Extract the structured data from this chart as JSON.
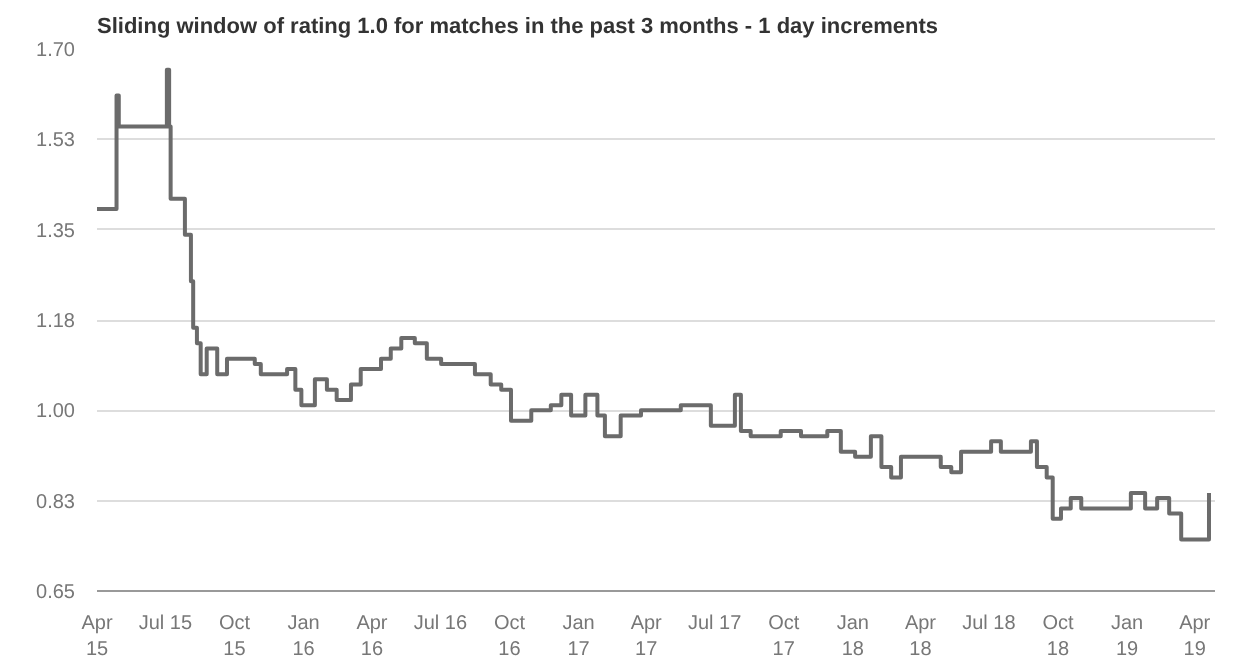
{
  "chart_data": {
    "type": "step",
    "title": "Sliding window of rating 1.0 for matches in the past 3 months - 1 day increments",
    "x": [
      "2015-04-01",
      "2015-04-27",
      "2015-04-30",
      "2015-05-06",
      "2015-06-25",
      "2015-07-03",
      "2015-07-06",
      "2015-07-08",
      "2015-07-22",
      "2015-07-27",
      "2015-08-01",
      "2015-08-04",
      "2015-08-07",
      "2015-08-12",
      "2015-08-17",
      "2015-08-25",
      "2015-09-08",
      "2015-09-21",
      "2015-10-28",
      "2015-11-05",
      "2015-12-10",
      "2015-12-21",
      "2015-12-29",
      "2016-01-16",
      "2016-02-01",
      "2016-02-14",
      "2016-03-04",
      "2016-03-17",
      "2016-04-13",
      "2016-04-26",
      "2016-05-10",
      "2016-05-28",
      "2016-06-13",
      "2016-07-02",
      "2016-08-03",
      "2016-08-16",
      "2016-09-06",
      "2016-09-20",
      "2016-10-03",
      "2016-10-30",
      "2016-11-25",
      "2016-12-09",
      "2016-12-22",
      "2017-01-10",
      "2017-01-26",
      "2017-02-05",
      "2017-02-26",
      "2017-03-25",
      "2017-04-29",
      "2017-05-17",
      "2017-06-13",
      "2017-06-26",
      "2017-07-28",
      "2017-08-05",
      "2017-08-18",
      "2017-09-27",
      "2017-10-24",
      "2017-11-28",
      "2017-12-16",
      "2018-01-04",
      "2018-01-25",
      "2018-02-08",
      "2018-02-21",
      "2018-03-06",
      "2018-04-02",
      "2018-04-28",
      "2018-05-12",
      "2018-05-25",
      "2018-06-21",
      "2018-07-04",
      "2018-07-17",
      "2018-08-18",
      "2018-08-26",
      "2018-09-03",
      "2018-09-16",
      "2018-09-24",
      "2018-10-05",
      "2018-10-18",
      "2018-11-01",
      "2018-11-22",
      "2018-12-24",
      "2019-01-06",
      "2019-01-25",
      "2019-02-10",
      "2019-02-26",
      "2019-03-14",
      "2019-04-17",
      "2019-04-20"
    ],
    "series": [
      {
        "color": "#6b6b6b",
        "values": [
          1.39,
          1.61,
          1.55,
          1.55,
          1.55,
          1.66,
          1.55,
          1.41,
          1.41,
          1.34,
          1.34,
          1.25,
          1.16,
          1.13,
          1.07,
          1.12,
          1.07,
          1.1,
          1.09,
          1.07,
          1.08,
          1.04,
          1.01,
          1.06,
          1.04,
          1.02,
          1.05,
          1.08,
          1.1,
          1.12,
          1.14,
          1.13,
          1.1,
          1.09,
          1.09,
          1.07,
          1.05,
          1.04,
          0.98,
          1.0,
          1.01,
          1.03,
          0.99,
          1.03,
          0.99,
          0.95,
          0.99,
          1.0,
          1.0,
          1.01,
          1.01,
          0.97,
          1.03,
          0.96,
          0.95,
          0.96,
          0.95,
          0.96,
          0.92,
          0.91,
          0.95,
          0.89,
          0.87,
          0.91,
          0.91,
          0.89,
          0.88,
          0.92,
          0.92,
          0.94,
          0.92,
          0.92,
          0.94,
          0.89,
          0.87,
          0.79,
          0.81,
          0.83,
          0.81,
          0.81,
          0.81,
          0.84,
          0.81,
          0.83,
          0.8,
          0.75,
          0.75,
          0.84
        ]
      }
    ],
    "xlim": [
      "2015-04-01",
      "2019-04-28"
    ],
    "xticks": [
      {
        "value": "2015-04-01",
        "label": "Apr\n15"
      },
      {
        "value": "2015-07-01",
        "label": "Jul 15"
      },
      {
        "value": "2015-10-01",
        "label": "Oct\n15"
      },
      {
        "value": "2016-01-01",
        "label": "Jan\n16"
      },
      {
        "value": "2016-04-01",
        "label": "Apr\n16"
      },
      {
        "value": "2016-07-01",
        "label": "Jul 16"
      },
      {
        "value": "2016-10-01",
        "label": "Oct\n16"
      },
      {
        "value": "2017-01-01",
        "label": "Jan\n17"
      },
      {
        "value": "2017-04-01",
        "label": "Apr\n17"
      },
      {
        "value": "2017-07-01",
        "label": "Jul 17"
      },
      {
        "value": "2017-10-01",
        "label": "Oct\n17"
      },
      {
        "value": "2018-01-01",
        "label": "Jan\n18"
      },
      {
        "value": "2018-04-01",
        "label": "Apr\n18"
      },
      {
        "value": "2018-07-01",
        "label": "Jul 18"
      },
      {
        "value": "2018-10-01",
        "label": "Oct\n18"
      },
      {
        "value": "2019-01-01",
        "label": "Jan\n19"
      },
      {
        "value": "2019-04-01",
        "label": "Apr\n19"
      }
    ],
    "ylim": [
      0.65,
      1.7
    ],
    "yticks": [
      0.65,
      {
        "value": 0.825,
        "label": "0.83"
      },
      {
        "value": 1.0,
        "label": "1.00"
      },
      {
        "value": 1.175,
        "label": "1.18"
      },
      1.35,
      {
        "value": 1.525,
        "label": "1.53"
      },
      {
        "value": 1.7,
        "label": "1.70"
      }
    ],
    "grid": "y",
    "line_style": "solid"
  }
}
